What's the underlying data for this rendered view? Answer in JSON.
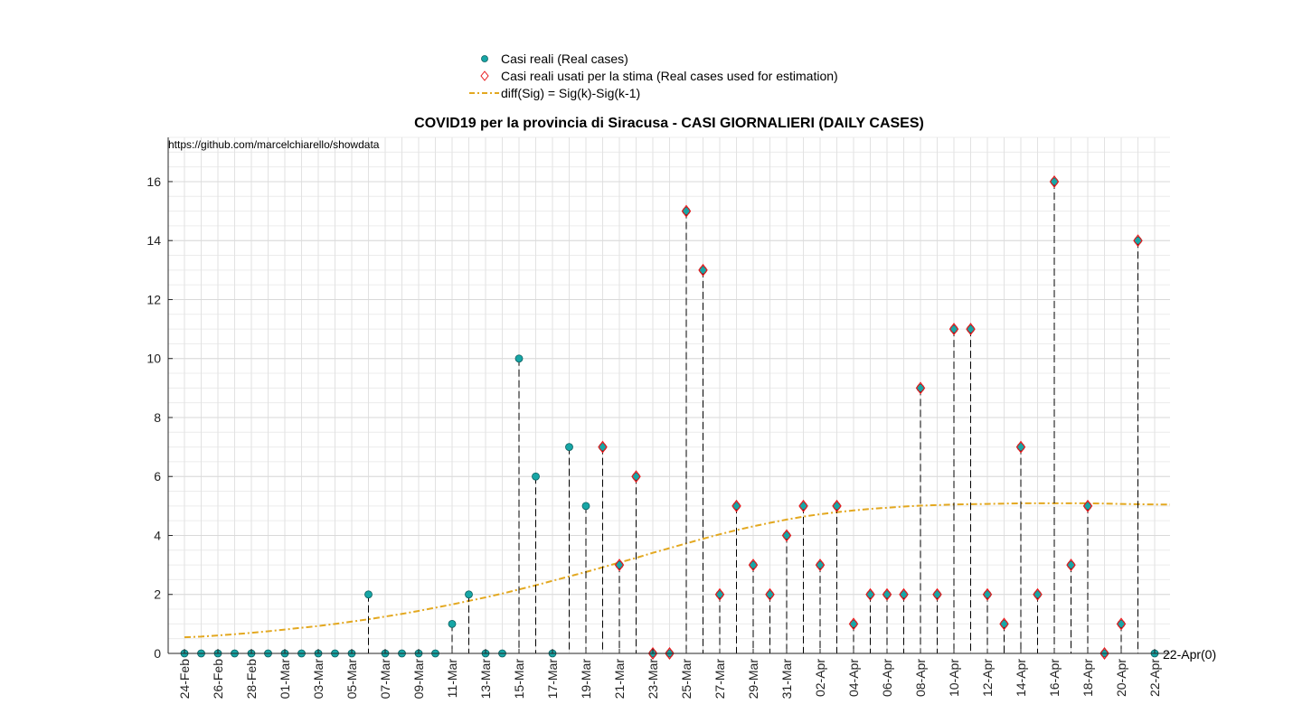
{
  "chart_data": {
    "type": "scatter",
    "title": "COVID19 per la provincia di Siracusa - CASI GIORNALIERI (DAILY CASES)",
    "source_text": "https://github.com/marcelchiarello/showdata",
    "end_label": "22-Apr(0)",
    "ylim": [
      0,
      17.5
    ],
    "y_ticks": [
      0,
      2,
      4,
      6,
      8,
      10,
      12,
      14,
      16
    ],
    "grid": true,
    "minor_grid": true,
    "legend_placement": "top-center",
    "colors": {
      "real_marker": "#17a6a6",
      "real_marker_edge": "#0b5e5e",
      "estimation_marker": "#e8191c",
      "curve": "#e3a820",
      "stem": "#000000",
      "grid": "#d9d9d9"
    },
    "legend": [
      {
        "label": "Casi reali (Real cases)"
      },
      {
        "label": "Casi reali usati per la stima (Real cases used for estimation)"
      },
      {
        "label": "diff(Sig) = Sig(k)-Sig(k-1)"
      }
    ],
    "x_tick_labels": [
      "24-Feb",
      "26-Feb",
      "28-Feb",
      "01-Mar",
      "03-Mar",
      "05-Mar",
      "07-Mar",
      "09-Mar",
      "11-Mar",
      "13-Mar",
      "15-Mar",
      "17-Mar",
      "19-Mar",
      "21-Mar",
      "23-Mar",
      "25-Mar",
      "27-Mar",
      "29-Mar",
      "31-Mar",
      "02-Apr",
      "04-Apr",
      "06-Apr",
      "08-Apr",
      "10-Apr",
      "12-Apr",
      "14-Apr",
      "16-Apr",
      "18-Apr",
      "20-Apr",
      "22-Apr"
    ],
    "x_dates": [
      "24-Feb",
      "25-Feb",
      "26-Feb",
      "27-Feb",
      "28-Feb",
      "29-Feb",
      "01-Mar",
      "02-Mar",
      "03-Mar",
      "04-Mar",
      "05-Mar",
      "06-Mar",
      "07-Mar",
      "08-Mar",
      "09-Mar",
      "10-Mar",
      "11-Mar",
      "12-Mar",
      "13-Mar",
      "14-Mar",
      "15-Mar",
      "16-Mar",
      "17-Mar",
      "18-Mar",
      "19-Mar",
      "20-Mar",
      "21-Mar",
      "22-Mar",
      "23-Mar",
      "24-Mar",
      "25-Mar",
      "26-Mar",
      "27-Mar",
      "28-Mar",
      "29-Mar",
      "30-Mar",
      "31-Mar",
      "01-Apr",
      "02-Apr",
      "03-Apr",
      "04-Apr",
      "05-Apr",
      "06-Apr",
      "07-Apr",
      "08-Apr",
      "09-Apr",
      "10-Apr",
      "11-Apr",
      "12-Apr",
      "13-Apr",
      "14-Apr",
      "15-Apr",
      "16-Apr",
      "17-Apr",
      "18-Apr",
      "19-Apr",
      "20-Apr",
      "21-Apr",
      "22-Apr"
    ],
    "series": [
      {
        "name": "Casi reali (Real cases)",
        "values": [
          0,
          0,
          0,
          0,
          0,
          0,
          0,
          0,
          0,
          0,
          0,
          2,
          0,
          0,
          0,
          0,
          1,
          2,
          0,
          0,
          10,
          6,
          0,
          7,
          5,
          7,
          3,
          6,
          0,
          0,
          15,
          13,
          2,
          5,
          3,
          2,
          4,
          5,
          3,
          5,
          1,
          2,
          2,
          2,
          9,
          2,
          11,
          11,
          2,
          1,
          7,
          2,
          16,
          3,
          5,
          0,
          1,
          14,
          0
        ]
      },
      {
        "name": "Casi reali usati per la stima (Real cases used for estimation)",
        "values": [
          null,
          null,
          null,
          null,
          null,
          null,
          null,
          null,
          null,
          null,
          null,
          null,
          null,
          null,
          null,
          null,
          null,
          null,
          null,
          null,
          null,
          null,
          null,
          null,
          null,
          7,
          3,
          6,
          0,
          0,
          15,
          13,
          2,
          5,
          3,
          2,
          4,
          5,
          3,
          5,
          1,
          2,
          2,
          2,
          9,
          2,
          11,
          11,
          2,
          1,
          7,
          2,
          16,
          3,
          5,
          0,
          1,
          14,
          null
        ]
      },
      {
        "name": "diff(Sig) = Sig(k)-Sig(k-1)",
        "values": [
          0.55,
          0.57,
          0.61,
          0.65,
          0.7,
          0.75,
          0.81,
          0.87,
          0.93,
          1.0,
          1.08,
          1.16,
          1.25,
          1.34,
          1.44,
          1.55,
          1.66,
          1.78,
          1.9,
          2.03,
          2.17,
          2.31,
          2.46,
          2.61,
          2.76,
          2.92,
          3.08,
          3.24,
          3.41,
          3.57,
          3.73,
          3.89,
          4.04,
          4.18,
          4.31,
          4.43,
          4.54,
          4.64,
          4.72,
          4.79,
          4.85,
          4.9,
          4.94,
          4.98,
          5.01,
          5.03,
          5.05,
          5.06,
          5.07,
          5.08,
          5.09,
          5.09,
          5.09,
          5.09,
          5.09,
          5.08,
          5.07,
          5.06,
          5.05
        ]
      }
    ]
  }
}
